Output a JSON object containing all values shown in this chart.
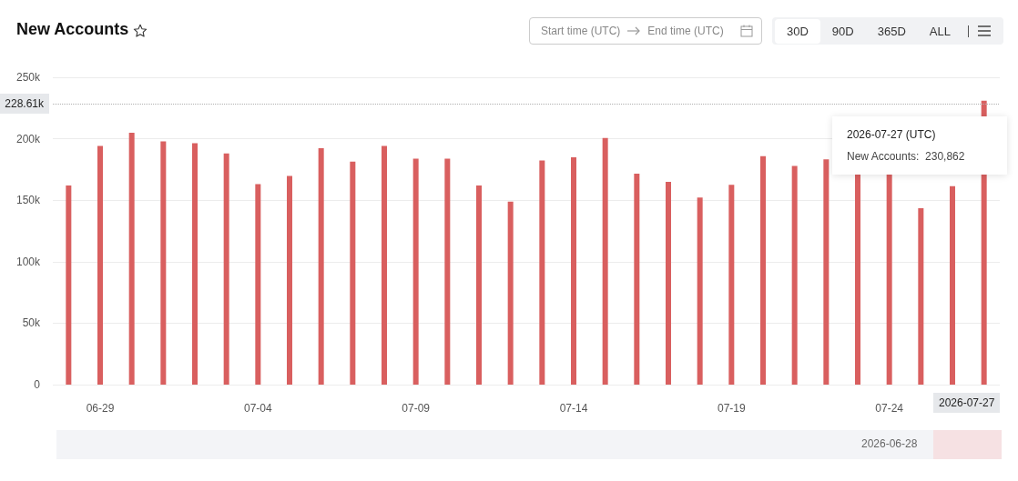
{
  "chart_data": {
    "type": "bar",
    "title": "New Accounts",
    "categories": [
      null,
      "06-29",
      null,
      null,
      null,
      null,
      "07-04",
      null,
      null,
      null,
      null,
      "07-09",
      null,
      null,
      null,
      null,
      "07-14",
      null,
      null,
      null,
      null,
      "07-19",
      null,
      null,
      null,
      null,
      "07-24",
      null,
      null,
      null
    ],
    "series": [
      {
        "color": "#d95f5f",
        "values": [
          162,
          194.1,
          204.8,
          197.8,
          196.3,
          188,
          163,
          169.7,
          192.3,
          181.4,
          194.1,
          183.8,
          183.8,
          162,
          148.9,
          182.4,
          185,
          200.7,
          171.6,
          165,
          152.2,
          162.6,
          185.9,
          177.9,
          183.2,
          171.1,
          171.1,
          143.4,
          161.5,
          230.862
        ]
      }
    ],
    "ylim": [
      0,
      250
    ],
    "yticks": [
      0,
      {
        "value": 50,
        "label": "50k"
      },
      {
        "value": 100,
        "label": "100k"
      },
      {
        "value": 150,
        "label": "150k"
      },
      {
        "value": 200,
        "label": "200k"
      },
      {
        "value": 250,
        "label": "250k"
      }
    ],
    "grid": "y",
    "ref_lines": [
      {
        "axis": "y",
        "value": 228.61,
        "label": "228.61k",
        "line_style": "dotted",
        "color": "#b0b0b0"
      }
    ],
    "annotations": [
      "2026-07-27 (UTC)",
      "New Accounts:  230,862",
      "2026-07-27",
      "2026-06-28",
      "Start time (UTC)",
      "End time (UTC)",
      "30D",
      "90D",
      "365D",
      "ALL"
    ]
  }
}
